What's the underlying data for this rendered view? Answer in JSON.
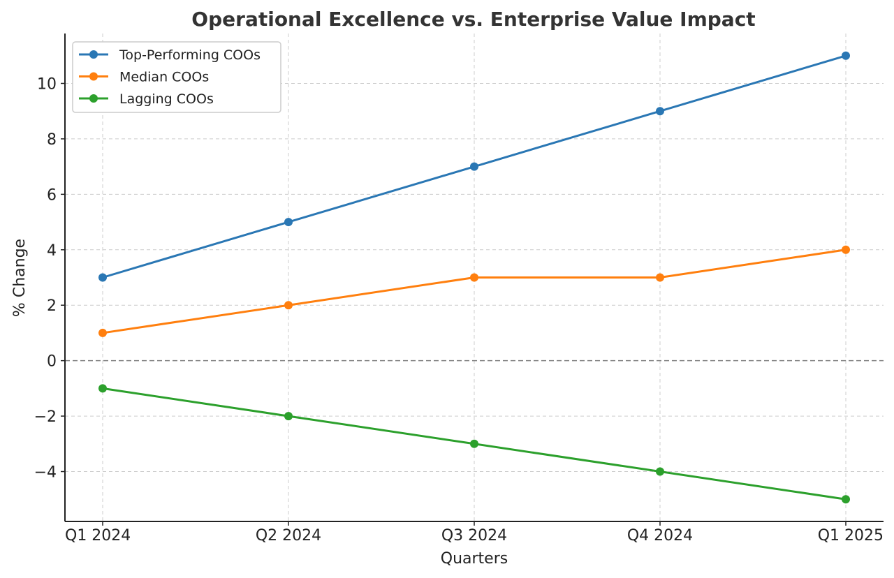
{
  "chart_data": {
    "type": "line",
    "title": "Operational Excellence vs. Enterprise Value Impact",
    "xlabel": "Quarters",
    "ylabel": "% Change",
    "categories": [
      "Q1 2024",
      "Q2 2024",
      "Q3 2024",
      "Q4 2024",
      "Q1 2025"
    ],
    "ylim": [
      -5.8,
      11.8
    ],
    "yticks": [
      -4,
      -2,
      0,
      2,
      4,
      6,
      8,
      10
    ],
    "ytick_labels": [
      "−4",
      "−2",
      "0",
      "2",
      "4",
      "6",
      "8",
      "10"
    ],
    "grid": true,
    "zero_line": true,
    "legend_position": "top-left",
    "series": [
      {
        "name": "Top-Performing COOs",
        "color": "#2a77b4",
        "values": [
          3,
          5,
          7,
          9,
          11
        ]
      },
      {
        "name": "Median COOs",
        "color": "#ff7f0e",
        "values": [
          1,
          2,
          3,
          3,
          4
        ]
      },
      {
        "name": "Lagging COOs",
        "color": "#2ca02c",
        "values": [
          -1,
          -2,
          -3,
          -4,
          -5
        ]
      }
    ]
  }
}
